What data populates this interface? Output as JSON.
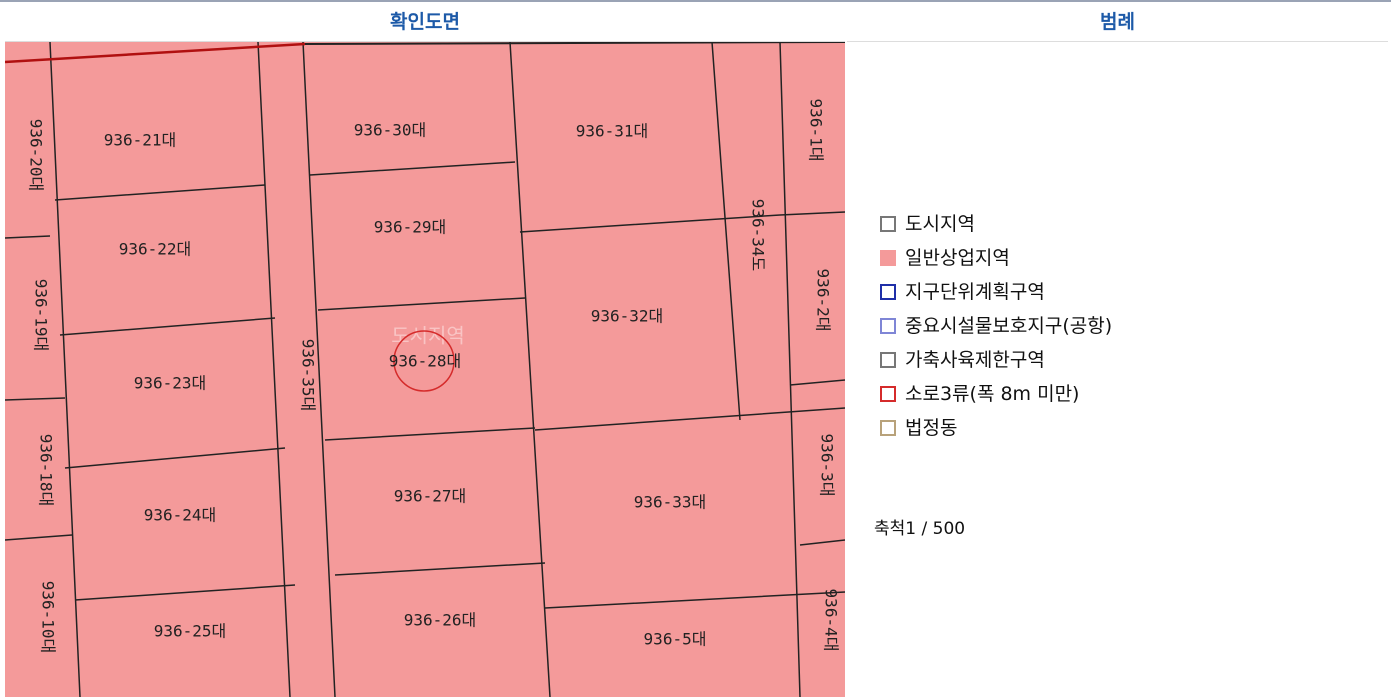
{
  "header": {
    "map_title": "확인도면",
    "legend_title": "범례"
  },
  "map": {
    "watermark": "도시지역",
    "parcels": [
      "936-21대",
      "936-30대",
      "936-31대",
      "936-1대",
      "936-20대",
      "936-22대",
      "936-29대",
      "936-34도",
      "936-19대",
      "936-2대",
      "936-32대",
      "936-35대",
      "936-28대",
      "936-23대",
      "936-18대",
      "936-3대",
      "936-27대",
      "936-33대",
      "936-24대",
      "936-10대",
      "936-4대",
      "936-26대",
      "936-25대",
      "936-5대"
    ]
  },
  "legend": {
    "items": [
      {
        "label": "도시지역",
        "border": "#777777",
        "fill": "#ffffff"
      },
      {
        "label": "일반상업지역",
        "border": "#f49a9a",
        "fill": "#f49a9a"
      },
      {
        "label": "지구단위계획구역",
        "border": "#1f2fa8",
        "fill": "#ffffff"
      },
      {
        "label": "중요시설물보호지구(공항)",
        "border": "#7f86d6",
        "fill": "#ffffff"
      },
      {
        "label": "가축사육제한구역",
        "border": "#777777",
        "fill": "#ffffff"
      },
      {
        "label": "소로3류(폭 8m 미만)",
        "border": "#d52b2b",
        "fill": "#ffffff"
      },
      {
        "label": "법정동",
        "border": "#b8a27a",
        "fill": "#ffffff"
      }
    ],
    "scale": "축척1 / 500"
  }
}
